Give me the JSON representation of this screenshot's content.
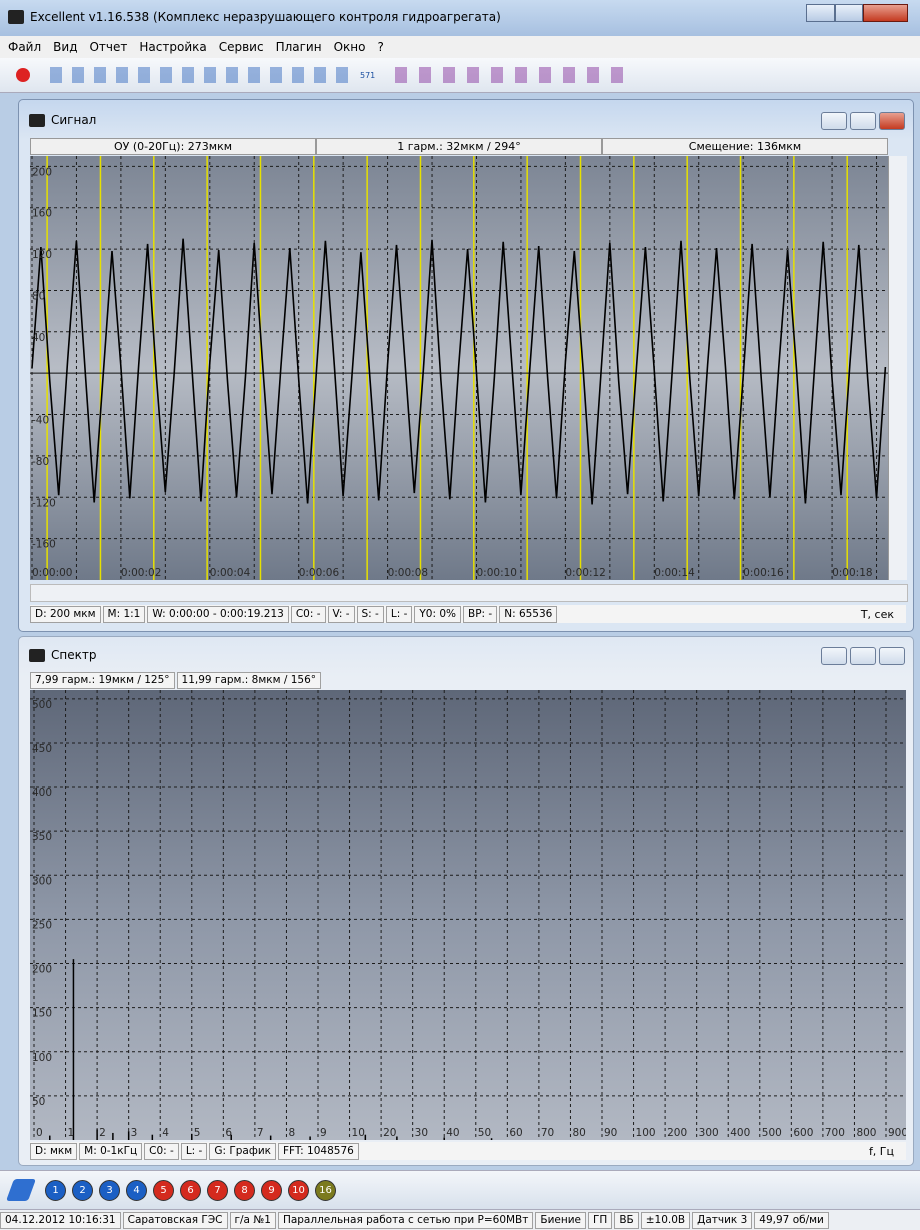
{
  "window": {
    "title": "Excellent v1.16.538 (Комплекс неразрушающего контроля гидроагрегата)",
    "menu": [
      "Файл",
      "Вид",
      "Отчет",
      "Настройка",
      "Сервис",
      "Плагин",
      "Окно",
      "?"
    ],
    "toolbar_text": "571"
  },
  "signal_window": {
    "title": "Сигнал",
    "info": [
      "ОУ (0-20Гц): 273мкм",
      "1 гарм.: 32мкм / 294°",
      "Смещение: 136мкм"
    ],
    "status": [
      "D: 200 мкм",
      "M: 1:1",
      "W: 0:00:00 - 0:00:19.213",
      "C0: -",
      "V: -",
      "S: -",
      "L: -",
      "Y0: 0%",
      "BP: -",
      "N: 65536"
    ]
  },
  "spectrum_window": {
    "title": "Спектр",
    "info": [
      "7,99 гарм.: 19мкм / 125°",
      "11,99 гарм.: 8мкм / 156°"
    ],
    "status": [
      "D: мкм",
      "M: 0-1кГц",
      "C0: -",
      "L: -",
      "G: График",
      "FFT: 1048576"
    ]
  },
  "chart_data": [
    {
      "type": "line",
      "x_label": "T, сек",
      "color": "#000000",
      "grid": true,
      "marker_color": "#e6e000",
      "x": [
        0,
        0.2,
        0.4,
        0.6,
        0.8,
        1,
        1.2,
        1.4,
        1.6,
        1.8,
        2,
        2.2,
        2.4,
        2.6,
        2.8,
        3,
        3.2,
        3.4,
        3.6,
        3.8,
        4,
        4.2,
        4.4,
        4.6,
        4.8,
        5,
        5.2,
        5.4,
        5.6,
        5.8,
        6,
        6.2,
        6.4,
        6.6,
        6.8,
        7,
        7.2,
        7.4,
        7.6,
        7.8,
        8,
        8.2,
        8.4,
        8.6,
        8.8,
        9,
        9.2,
        9.4,
        9.6,
        9.8,
        10,
        10.2,
        10.4,
        10.6,
        10.8,
        11,
        11.2,
        11.4,
        11.6,
        11.8,
        12,
        12.2,
        12.4,
        12.6,
        12.8,
        13,
        13.2,
        13.4,
        13.6,
        13.8,
        14,
        14.2,
        14.4,
        14.6,
        14.8,
        15,
        15.2,
        15.4,
        15.6,
        15.8,
        16,
        16.2,
        16.4,
        16.6,
        16.8,
        17,
        17.2,
        17.4,
        17.6,
        17.8,
        18,
        18.2,
        18.4,
        18.6,
        18.8,
        19,
        19.2
      ],
      "values": [
        5,
        122,
        -8,
        -118,
        12,
        128,
        0,
        -125,
        -3,
        118,
        6,
        -121,
        8,
        125,
        -5,
        -115,
        0,
        130,
        4,
        -124,
        10,
        119,
        -9,
        -120,
        -4,
        126,
        2,
        -117,
        6,
        121,
        -6,
        -126,
        3,
        128,
        8,
        -119,
        -2,
        117,
        -3,
        -123,
        9,
        124,
        5,
        -116,
        1,
        129,
        -7,
        -122,
        7,
        120,
        0,
        -125,
        -5,
        127,
        6,
        -118,
        4,
        123,
        -4,
        -121,
        11,
        118,
        3,
        -127,
        -1,
        126,
        -8,
        -117,
        6,
        122,
        2,
        -124,
        0,
        128,
        -5,
        -119,
        8,
        121,
        7,
        -122,
        -3,
        125,
        -2,
        -120,
        5,
        119,
        4,
        -126,
        2,
        127,
        -6,
        -118,
        9,
        124,
        -4,
        -121,
        6
      ],
      "markers": [
        0.34,
        1.54,
        2.74,
        3.94,
        5.14,
        6.34,
        7.54,
        8.74,
        9.94,
        11.14,
        12.34,
        13.54,
        14.74,
        15.94,
        17.14,
        18.34
      ],
      "xlim": [
        0,
        19.213
      ],
      "ylim": [
        -200,
        210
      ],
      "xticks": [
        {
          "value": 0,
          "label": "0:00:00"
        },
        {
          "value": 2,
          "label": "0:00:02"
        },
        {
          "value": 4,
          "label": "0:00:04"
        },
        {
          "value": 6,
          "label": "0:00:06"
        },
        {
          "value": 8,
          "label": "0:00:08"
        },
        {
          "value": 10,
          "label": "0:00:10"
        },
        {
          "value": 12,
          "label": "0:00:12"
        },
        {
          "value": 14,
          "label": "0:00:14"
        },
        {
          "value": 16,
          "label": "0:00:16"
        },
        {
          "value": 18,
          "label": "0:00:18"
        }
      ],
      "xminor": [
        1,
        3,
        5,
        7,
        9,
        11,
        13,
        15,
        17,
        19
      ],
      "yticks": [
        200,
        160,
        120,
        80,
        40,
        -40,
        -80,
        -120,
        -160
      ]
    },
    {
      "type": "spectrum",
      "x_label": "f, Гц",
      "color": "#000000",
      "grid": true,
      "x": [
        0.5,
        1.25,
        2,
        2.5,
        3,
        3.75,
        5,
        6.25,
        7.5,
        8.75,
        15,
        25,
        40,
        55
      ],
      "values": [
        5,
        205,
        12,
        8,
        10,
        6,
        7,
        6,
        5,
        4,
        6,
        4,
        3,
        2
      ],
      "xlim": [
        0,
        900
      ],
      "ylim": [
        0,
        510
      ],
      "xticks": [
        0,
        1,
        2,
        3,
        4,
        5,
        6,
        7,
        8,
        9,
        10,
        20,
        30,
        40,
        50,
        60,
        70,
        80,
        90,
        100,
        200,
        300,
        400,
        500,
        600,
        700,
        800,
        900
      ],
      "yticks": [
        50,
        100,
        150,
        200,
        250,
        300,
        350,
        400,
        450,
        500
      ]
    }
  ],
  "bottom_toolbar": {
    "channels": [
      {
        "label": "1",
        "color": "#1b5fc4"
      },
      {
        "label": "2",
        "color": "#1b5fc4"
      },
      {
        "label": "3",
        "color": "#1b5fc4"
      },
      {
        "label": "4",
        "color": "#1b5fc4"
      },
      {
        "label": "5",
        "color": "#d42a1e"
      },
      {
        "label": "6",
        "color": "#d42a1e"
      },
      {
        "label": "7",
        "color": "#d42a1e"
      },
      {
        "label": "8",
        "color": "#d42a1e"
      },
      {
        "label": "9",
        "color": "#d42a1e"
      },
      {
        "label": "10",
        "color": "#d42a1e"
      },
      {
        "label": "16",
        "color": "#7b7a1e"
      }
    ]
  },
  "status_bar": [
    "04.12.2012 10:16:31",
    "Саратовская ГЭС",
    "г/а №1",
    "Параллельная работа с сетью при Р=60МВт",
    "Биение",
    "ГП",
    "ВБ",
    "±10.0В",
    "Датчик 3",
    "49,97 об/ми"
  ]
}
